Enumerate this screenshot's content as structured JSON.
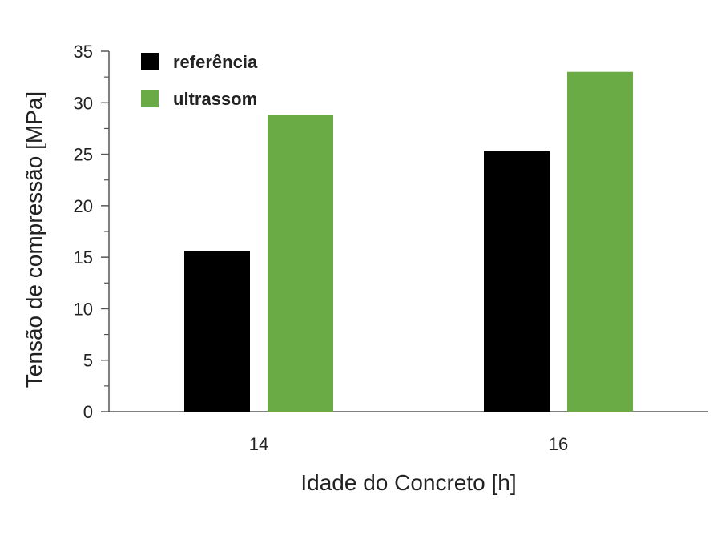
{
  "chart_data": {
    "type": "bar",
    "categories": [
      "14",
      "16"
    ],
    "series": [
      {
        "name": "referência",
        "values": [
          15.6,
          25.3
        ],
        "color": "#000000"
      },
      {
        "name": "ultrassom",
        "values": [
          28.8,
          33.0
        ],
        "color": "#6aab45"
      }
    ],
    "xlabel": "Idade do Concreto [h]",
    "ylabel": "Tensão de compressão [MPa]",
    "ylim": [
      0,
      35
    ],
    "yticks": [
      0,
      5,
      10,
      15,
      20,
      25,
      30,
      35
    ],
    "grid": false,
    "legend": "top-left"
  }
}
